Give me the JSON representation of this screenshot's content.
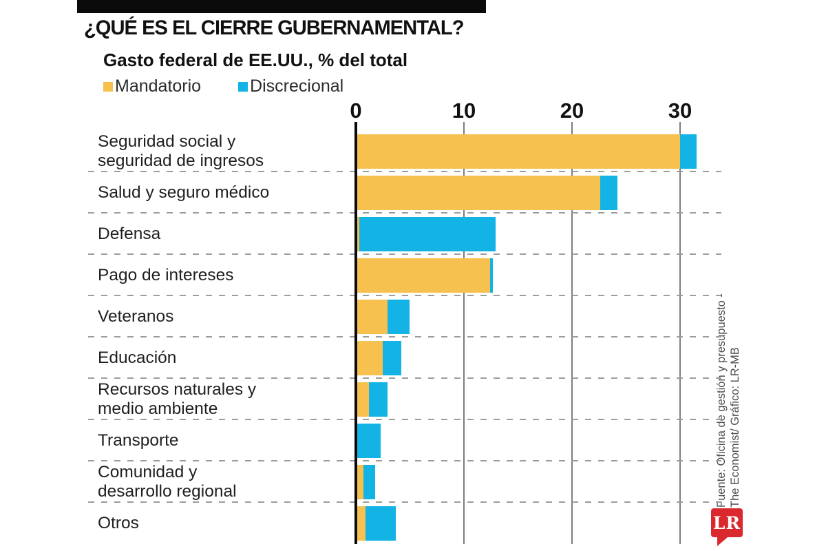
{
  "header": {
    "title": "¿QUÉ ES EL CIERRE GUBERNAMENTAL?",
    "subtitle": "Gasto federal de EE.UU., % del total"
  },
  "legend": [
    {
      "label": "Mandatorio",
      "color": "#F6C14F"
    },
    {
      "label": "Discrecional",
      "color": "#14B3E6"
    }
  ],
  "chart_data": {
    "type": "bar",
    "orientation": "horizontal",
    "stacked": true,
    "title": "¿QUÉ ES EL CIERRE GUBERNAMENTAL?",
    "subtitle": "Gasto federal de EE.UU., % del total",
    "xlabel": "% del total",
    "ylabel": "",
    "xticks": [
      0,
      10,
      20,
      30
    ],
    "xlim": [
      0,
      31.5
    ],
    "grid": "vertical",
    "legend_position": "top",
    "categories": [
      "Seguridad social y\nseguridad de ingresos",
      "Salud y seguro médico",
      "Defensa",
      "Pago de intereses",
      "Veteranos",
      "Educación",
      "Recursos naturales y\nmedio ambiente",
      "Transporte",
      "Comunidad y\ndesarrollo regional",
      "Otros"
    ],
    "series": [
      {
        "name": "Mandatorio",
        "color": "#F6C14F",
        "values": [
          30,
          22.6,
          0.3,
          12.4,
          2.9,
          2.5,
          1.2,
          0,
          0.7,
          0.9
        ]
      },
      {
        "name": "Discrecional",
        "color": "#14B3E6",
        "values": [
          1.5,
          1.6,
          12.6,
          0.3,
          2.1,
          1.7,
          1.7,
          2.3,
          1.1,
          2.8
        ]
      }
    ]
  },
  "source": {
    "line1": "Fuente: Oficina de gestión y presupuesto -",
    "line2": "The Economist/ Gráfico: LR-MB"
  },
  "logo": {
    "text": "LR",
    "color": "#d9292e"
  }
}
